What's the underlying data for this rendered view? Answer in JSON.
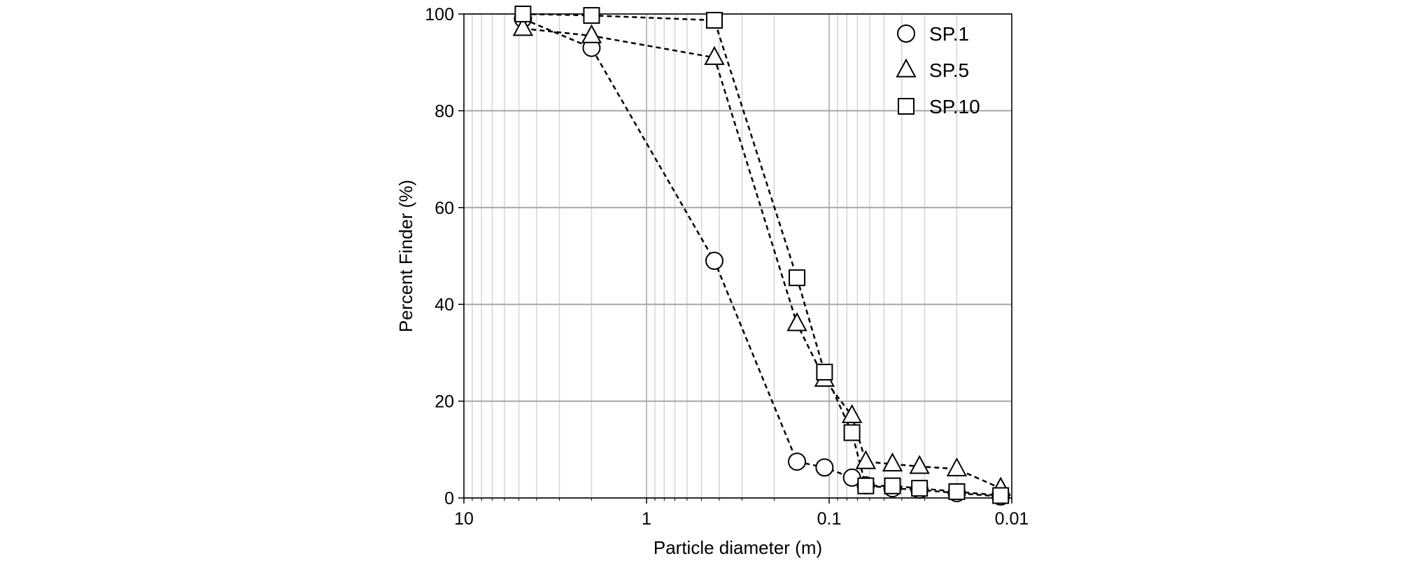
{
  "chart_data": {
    "type": "scatter",
    "title": "",
    "xlabel": "Particle diameter (m)",
    "ylabel": "Percent Finder (%)",
    "x_scale": "log",
    "x_reversed": true,
    "xlim": [
      10,
      0.01
    ],
    "ylim": [
      0,
      100
    ],
    "x_ticks": [
      {
        "value": 10,
        "label": "10"
      },
      {
        "value": 1,
        "label": "1"
      },
      {
        "value": 0.1,
        "label": "0.1"
      },
      {
        "value": 0.01,
        "label": "0.01"
      }
    ],
    "y_ticks": [
      {
        "value": 0,
        "label": "0"
      },
      {
        "value": 20,
        "label": "20"
      },
      {
        "value": 40,
        "label": "40"
      },
      {
        "value": 60,
        "label": "60"
      },
      {
        "value": 80,
        "label": "80"
      },
      {
        "value": 100,
        "label": "100"
      }
    ],
    "grid": true,
    "line_style": "dashed",
    "legend_position": "top-right",
    "series": [
      {
        "name": "SP.1",
        "marker": "circle",
        "x": [
          4.75,
          2.0,
          0.425,
          0.15,
          0.106,
          0.075,
          0.063,
          0.045,
          0.032,
          0.02,
          0.0115
        ],
        "y": [
          99,
          93,
          49,
          7.5,
          6.3,
          4.2,
          2.6,
          2.0,
          1.7,
          1.0,
          0.3
        ]
      },
      {
        "name": "SP.5",
        "marker": "triangle",
        "x": [
          4.75,
          2.0,
          0.425,
          0.15,
          0.106,
          0.075,
          0.063,
          0.045,
          0.032,
          0.02,
          0.0115
        ],
        "y": [
          97,
          95.5,
          91,
          36,
          24.5,
          17,
          7.5,
          7,
          6.5,
          6,
          2
        ]
      },
      {
        "name": "SP.10",
        "marker": "square",
        "x": [
          4.75,
          2.0,
          0.425,
          0.15,
          0.106,
          0.075,
          0.063,
          0.045,
          0.032,
          0.02,
          0.0115
        ],
        "y": [
          100,
          99.7,
          98.7,
          45.5,
          26,
          13.5,
          2.5,
          2.5,
          2.0,
          1.3,
          0.5
        ]
      }
    ]
  }
}
